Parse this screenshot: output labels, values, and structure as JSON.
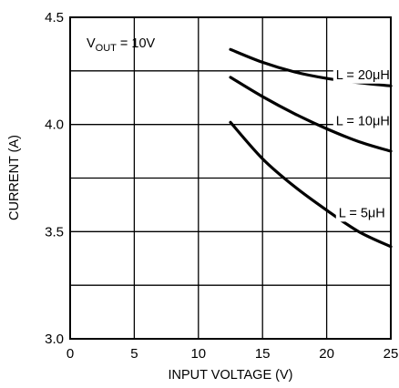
{
  "chart_data": {
    "type": "line",
    "xlabel": "INPUT VOLTAGE (V)",
    "ylabel": "CURRENT (A)",
    "xlim": [
      0,
      25
    ],
    "ylim": [
      3.0,
      4.5
    ],
    "xticks": [
      "0",
      "5",
      "10",
      "15",
      "20",
      "25"
    ],
    "yticks": [
      "3.0",
      "3.5",
      "4.0",
      "4.5"
    ],
    "grid": true,
    "annotation": {
      "prefix": "V",
      "subscript": "OUT",
      "suffix": " = 10V"
    },
    "series": [
      {
        "name": "L = 20μH",
        "x": [
          12.5,
          15,
          17.5,
          20,
          22.5,
          25
        ],
        "y": [
          4.35,
          4.29,
          4.245,
          4.215,
          4.195,
          4.18
        ]
      },
      {
        "name": "L = 10μH",
        "x": [
          12.5,
          15,
          17.5,
          20,
          22.5,
          25
        ],
        "y": [
          4.22,
          4.13,
          4.05,
          3.98,
          3.92,
          3.875
        ]
      },
      {
        "name": "L = 5μH",
        "x": [
          12.5,
          15,
          17.5,
          20,
          22.5,
          25
        ],
        "y": [
          4.01,
          3.84,
          3.71,
          3.6,
          3.5,
          3.43
        ]
      }
    ]
  }
}
